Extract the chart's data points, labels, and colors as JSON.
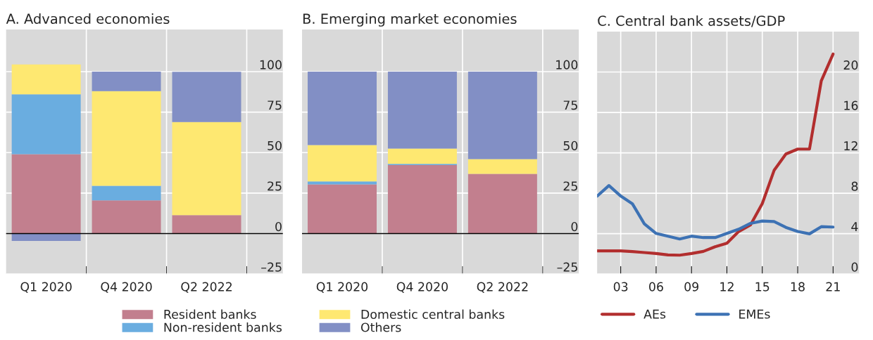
{
  "chart_data": [
    {
      "type": "bar",
      "title": "A. Advanced economies",
      "stacked": true,
      "categories": [
        "Q1 2020",
        "Q4 2020",
        "Q2 2022"
      ],
      "ylim": [
        -25,
        126
      ],
      "yticks": [
        {
          "value": -25,
          "label": "–25"
        },
        0,
        25,
        50,
        75,
        100
      ],
      "grid": true,
      "legend": "bottom",
      "series": [
        {
          "name": "Resident banks",
          "color": "#c27f8e",
          "values": [
            49,
            20.5,
            11.4
          ]
        },
        {
          "name": "Non-resident banks",
          "color": "#6aade0",
          "values": [
            37,
            9,
            0
          ]
        },
        {
          "name": "Domestic central banks",
          "color": "#fee871",
          "values": [
            18.5,
            58.5,
            57.5
          ]
        },
        {
          "name": "Others",
          "color": "#828fc5",
          "values": [
            -4.6,
            12,
            31
          ]
        }
      ]
    },
    {
      "type": "bar",
      "title": "B. Emerging market economies",
      "stacked": true,
      "categories": [
        "Q1 2020",
        "Q4 2020",
        "Q2 2022"
      ],
      "ylim": [
        -25,
        126
      ],
      "yticks": [
        {
          "value": -25,
          "label": "–25"
        },
        0,
        25,
        50,
        75,
        100
      ],
      "grid": true,
      "series": [
        {
          "color": "#c27f8e",
          "values": [
            30.4,
            42.3,
            36.9
          ]
        },
        {
          "color": "#6aade0",
          "values": [
            1.8,
            0.8,
            0
          ]
        },
        {
          "color": "#fee871",
          "values": [
            22.5,
            9.4,
            9.1
          ]
        },
        {
          "color": "#828fc5",
          "values": [
            45.3,
            47.5,
            54
          ]
        }
      ]
    },
    {
      "type": "line",
      "title": "C. Central bank assets/GDP",
      "xlim": [
        2001,
        2023.2
      ],
      "ylim": [
        0,
        24
      ],
      "xticks": [
        {
          "value": 2003,
          "label": "03"
        },
        {
          "value": 2006,
          "label": "06"
        },
        {
          "value": 2009,
          "label": "09"
        },
        {
          "value": 2012,
          "label": "12"
        },
        {
          "value": 2015,
          "label": "15"
        },
        {
          "value": 2018,
          "label": "18"
        },
        {
          "value": 2021,
          "label": "21"
        }
      ],
      "yticks": [
        0,
        4,
        8,
        12,
        16,
        20
      ],
      "grid": true,
      "legend": "bottom",
      "series": [
        {
          "name": "AEs",
          "color": "#b22e2e",
          "x": [
            2001,
            2003,
            2004,
            2005,
            2006,
            2007,
            2008,
            2009,
            2010,
            2011,
            2012,
            2013,
            2014,
            2015,
            2016,
            2017,
            2018,
            2019,
            2020,
            2021
          ],
          "values": [
            2.29,
            2.29,
            2.22,
            2.13,
            2.03,
            1.89,
            1.87,
            2.03,
            2.24,
            2.7,
            3.05,
            4.21,
            4.86,
            6.98,
            10.26,
            11.88,
            12.37,
            12.37,
            19.12,
            21.78
          ]
        },
        {
          "name": "EMEs",
          "color": "#3d72b4",
          "x": [
            2001,
            2002,
            2003,
            2004,
            2005,
            2006,
            2007,
            2008,
            2009,
            2010,
            2011,
            2012,
            2013,
            2014,
            2015,
            2016,
            2017,
            2018,
            2019,
            2020,
            2021
          ],
          "values": [
            7.72,
            8.76,
            7.72,
            6.94,
            4.97,
            4.02,
            3.75,
            3.47,
            3.75,
            3.61,
            3.61,
            4.02,
            4.44,
            5.02,
            5.25,
            5.2,
            4.62,
            4.21,
            3.98,
            4.69,
            4.65
          ]
        }
      ]
    }
  ]
}
